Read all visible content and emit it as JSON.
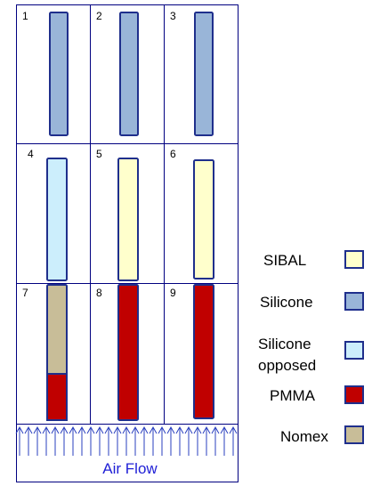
{
  "materials": {
    "sibal": {
      "label": "SIBAL",
      "color": "#ffffcc"
    },
    "silicone": {
      "label": "Silicone",
      "color": "#99b5d8"
    },
    "silicone_opposed": {
      "label": [
        "Silicone",
        "opposed"
      ],
      "color": "#cceefc"
    },
    "pmma": {
      "label": "PMMA",
      "color": "#c00000"
    },
    "nomex": {
      "label": "Nomex",
      "color": "#c8bd98"
    }
  },
  "cells": [
    {
      "number": "1",
      "material": "silicone"
    },
    {
      "number": "2",
      "material": "silicone"
    },
    {
      "number": "3",
      "material": "silicone"
    },
    {
      "number": "4",
      "material": "silicone_opposed"
    },
    {
      "number": "5",
      "material": "sibal"
    },
    {
      "number": "6",
      "material": "sibal"
    },
    {
      "number": "7",
      "material": "nomex",
      "lower_material": "pmma",
      "lower_fraction": 0.25
    },
    {
      "number": "8",
      "material": "pmma"
    },
    {
      "number": "9",
      "material": "pmma"
    }
  ],
  "airflow_label": "Air Flow",
  "colors": {
    "border": "#1f2f8c",
    "cell_line": "#000080",
    "arrow": "#2a3fbf"
  }
}
